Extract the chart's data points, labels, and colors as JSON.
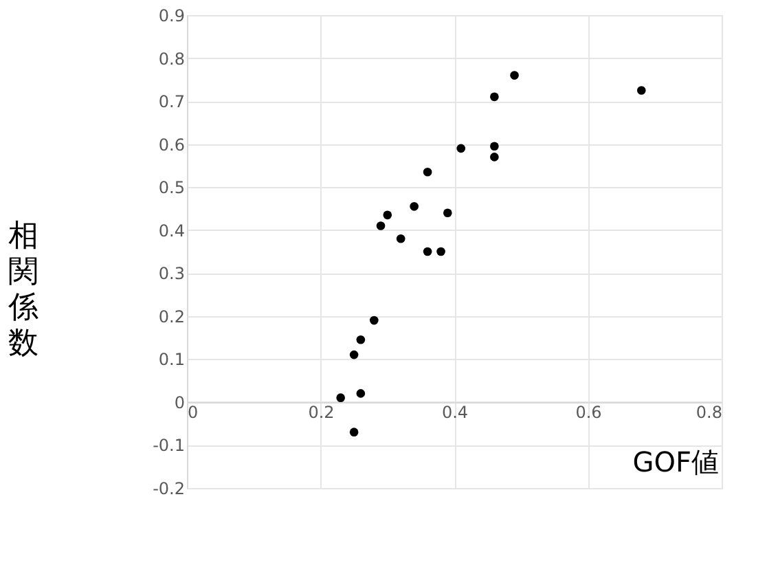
{
  "chart_data": {
    "type": "scatter",
    "xlabel": "GOF値",
    "ylabel": "相関係数",
    "marker": "circle",
    "grid": true,
    "xlim": [
      0,
      0.8
    ],
    "xticks": [
      0,
      0.2,
      0.4,
      0.6,
      0.8
    ],
    "ylim": [
      -0.2,
      0.9
    ],
    "yticks": [
      -0.2,
      -0.1,
      0,
      0.1,
      0.2,
      0.3,
      0.4,
      0.5,
      0.6,
      0.7,
      0.8,
      0.9
    ],
    "series": [
      {
        "color": "#000000",
        "x": [
          0.23,
          0.26,
          0.25,
          0.25,
          0.26,
          0.28,
          0.29,
          0.3,
          0.32,
          0.34,
          0.36,
          0.38,
          0.39,
          0.36,
          0.41,
          0.46,
          0.46,
          0.46,
          0.49,
          0.68
        ],
        "values": [
          0.01,
          0.02,
          -0.07,
          0.11,
          0.145,
          0.19,
          0.41,
          0.435,
          0.38,
          0.455,
          0.35,
          0.35,
          0.44,
          0.535,
          0.59,
          0.595,
          0.57,
          0.71,
          0.76,
          0.725
        ]
      }
    ]
  }
}
